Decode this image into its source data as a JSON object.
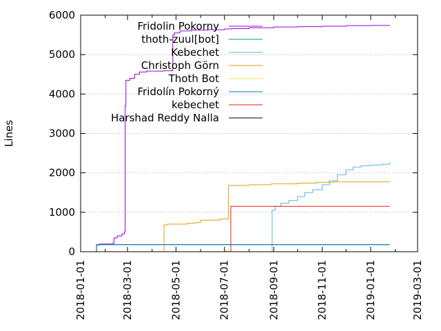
{
  "chart_data": {
    "type": "line",
    "title": "",
    "xlabel": "",
    "ylabel": "Lines",
    "xlim": [
      "2018-01-01",
      "2019-03-01"
    ],
    "ylim": [
      0,
      6000
    ],
    "x_ticks": [
      "2018-01-01",
      "2018-03-01",
      "2018-05-01",
      "2018-07-01",
      "2018-09-01",
      "2018-11-01",
      "2019-01-01",
      "2019-03-01"
    ],
    "y_ticks": [
      0,
      1000,
      2000,
      3000,
      4000,
      5000,
      6000
    ],
    "grid": true,
    "legend_position": "top-right",
    "series": [
      {
        "name": "Fridolin Pokorny",
        "color": "#9400d3",
        "step": true,
        "points": [
          [
            "2018-01-20",
            0
          ],
          [
            "2018-01-21",
            170
          ],
          [
            "2018-01-25",
            195
          ],
          [
            "2018-02-10",
            210
          ],
          [
            "2018-02-12",
            350
          ],
          [
            "2018-02-16",
            400
          ],
          [
            "2018-02-22",
            450
          ],
          [
            "2018-02-25",
            500
          ],
          [
            "2018-02-26",
            3700
          ],
          [
            "2018-02-27",
            4350
          ],
          [
            "2018-03-04",
            4400
          ],
          [
            "2018-03-10",
            4500
          ],
          [
            "2018-03-16",
            4560
          ],
          [
            "2018-03-25",
            4580
          ],
          [
            "2018-04-15",
            4590
          ],
          [
            "2018-04-26",
            4600
          ],
          [
            "2018-04-27",
            5500
          ],
          [
            "2018-04-29",
            5550
          ],
          [
            "2018-05-06",
            5600
          ],
          [
            "2018-05-20",
            5620
          ],
          [
            "2018-06-10",
            5630
          ],
          [
            "2018-07-01",
            5650
          ],
          [
            "2018-07-10",
            5660
          ],
          [
            "2018-08-01",
            5680
          ],
          [
            "2018-09-01",
            5700
          ],
          [
            "2018-10-01",
            5710
          ],
          [
            "2018-11-01",
            5720
          ],
          [
            "2018-12-01",
            5735
          ],
          [
            "2019-01-01",
            5740
          ],
          [
            "2019-01-25",
            5745
          ]
        ]
      },
      {
        "name": "thoth-zuul[bot]",
        "color": "#009e73",
        "step": true,
        "points": [
          [
            "2018-01-20",
            0
          ],
          [
            "2018-01-21",
            180
          ],
          [
            "2019-01-25",
            180
          ]
        ]
      },
      {
        "name": "Kebechet",
        "color": "#56b4e9",
        "step": true,
        "points": [
          [
            "2018-08-29",
            0
          ],
          [
            "2018-08-30",
            1050
          ],
          [
            "2018-09-03",
            1150
          ],
          [
            "2018-09-10",
            1230
          ],
          [
            "2018-09-20",
            1300
          ],
          [
            "2018-10-01",
            1400
          ],
          [
            "2018-10-10",
            1500
          ],
          [
            "2018-10-20",
            1570
          ],
          [
            "2018-11-01",
            1700
          ],
          [
            "2018-11-10",
            1800
          ],
          [
            "2018-11-20",
            1950
          ],
          [
            "2018-12-01",
            2080
          ],
          [
            "2018-12-10",
            2150
          ],
          [
            "2018-12-20",
            2180
          ],
          [
            "2019-01-01",
            2200
          ],
          [
            "2019-01-15",
            2220
          ],
          [
            "2019-01-25",
            2270
          ]
        ]
      },
      {
        "name": "Christoph Görn",
        "color": "#e69f00",
        "step": true,
        "points": [
          [
            "2018-04-15",
            0
          ],
          [
            "2018-04-16",
            680
          ],
          [
            "2018-04-20",
            700
          ],
          [
            "2018-05-15",
            720
          ],
          [
            "2018-05-25",
            740
          ],
          [
            "2018-06-01",
            800
          ],
          [
            "2018-06-25",
            830
          ],
          [
            "2018-07-05",
            840
          ],
          [
            "2018-07-06",
            1680
          ],
          [
            "2018-08-01",
            1700
          ],
          [
            "2018-08-29",
            1720
          ],
          [
            "2018-10-01",
            1740
          ],
          [
            "2018-10-25",
            1760
          ],
          [
            "2018-11-15",
            1770
          ],
          [
            "2019-01-25",
            1780
          ]
        ]
      },
      {
        "name": "Thoth Bot",
        "color": "#f0e442",
        "step": true,
        "points": [
          [
            "2018-06-25",
            0
          ],
          [
            "2018-07-02",
            20
          ],
          [
            "2018-07-07",
            40
          ]
        ]
      },
      {
        "name": "Fridolín Pokorný",
        "color": "#0072b2",
        "step": true,
        "points": [
          [
            "2018-01-20",
            0
          ],
          [
            "2018-01-21",
            180
          ],
          [
            "2019-01-25",
            180
          ]
        ]
      },
      {
        "name": "kebechet",
        "color": "#e51e10",
        "step": true,
        "points": [
          [
            "2018-07-05",
            0
          ],
          [
            "2018-07-09",
            1150
          ],
          [
            "2019-01-25",
            1150
          ]
        ]
      },
      {
        "name": "Harshad Reddy Nalla",
        "color": "#000000",
        "step": true,
        "points": [
          [
            "2018-01-19",
            0
          ],
          [
            "2018-01-21",
            0
          ]
        ]
      }
    ]
  }
}
